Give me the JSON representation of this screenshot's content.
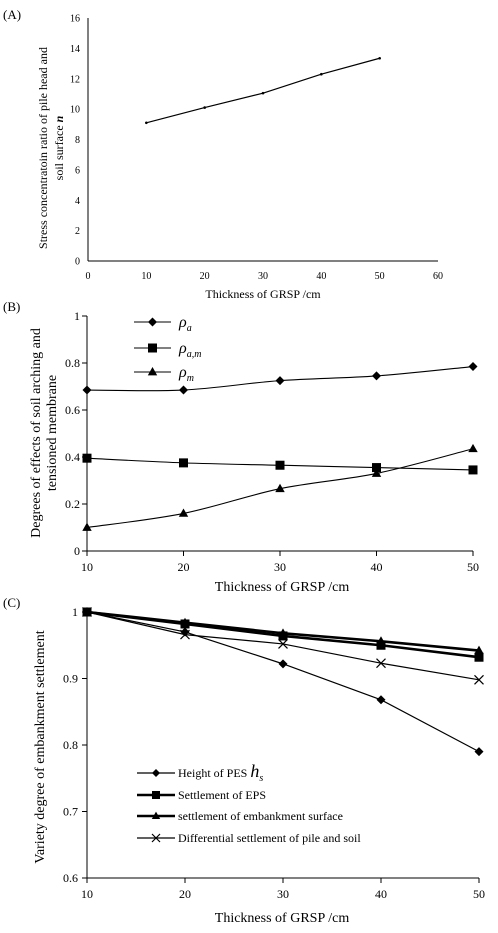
{
  "chart_data": [
    {
      "panel_label": "(A)",
      "type": "line",
      "xlabel": "Thickness of GRSP /cm",
      "ylabel_line1": "Stress concentratoin ratio of pile head and",
      "ylabel_line2_pre": "soil surface  ",
      "ylabel_line2_sym": "n",
      "xlim": [
        0,
        60
      ],
      "ylim": [
        0,
        16
      ],
      "xticks": [
        0,
        10,
        20,
        30,
        40,
        50,
        60
      ],
      "yticks": [
        0,
        2,
        4,
        6,
        8,
        10,
        12,
        14,
        16
      ],
      "series": [
        {
          "marker": "circle",
          "x": [
            10,
            20,
            30,
            40,
            50
          ],
          "y": [
            9.1,
            10.1,
            11.05,
            12.3,
            13.35
          ]
        }
      ]
    },
    {
      "panel_label": "(B)",
      "type": "line",
      "xlabel": "Thickness of GRSP /cm",
      "ylabel_line1": "Degrees of effects of soil arching and",
      "ylabel_line2": "tensioned membrane",
      "xlim": [
        10,
        50
      ],
      "ylim": [
        0,
        1
      ],
      "xticks": [
        10,
        20,
        30,
        40,
        50
      ],
      "yticks": [
        "0",
        "0.2",
        "0.4",
        "0.6",
        "0.8",
        "1"
      ],
      "legend": [
        {
          "sym": "ρ",
          "sub": "a",
          "marker": "diamond"
        },
        {
          "sym": "ρ",
          "sub": "a,m",
          "marker": "square"
        },
        {
          "sym": "ρ",
          "sub": "m",
          "marker": "triangle"
        }
      ],
      "series": [
        {
          "marker": "diamond",
          "x": [
            10,
            20,
            30,
            40,
            50
          ],
          "y": [
            0.685,
            0.685,
            0.725,
            0.745,
            0.785
          ]
        },
        {
          "marker": "square",
          "x": [
            10,
            20,
            30,
            40,
            50
          ],
          "y": [
            0.395,
            0.375,
            0.365,
            0.355,
            0.345
          ]
        },
        {
          "marker": "triangle",
          "x": [
            10,
            20,
            30,
            40,
            50
          ],
          "y": [
            0.1,
            0.16,
            0.265,
            0.33,
            0.435
          ]
        }
      ]
    },
    {
      "panel_label": "(C)",
      "type": "line",
      "xlabel": "Thickness of GRSP /cm",
      "ylabel": "Variety degree of embankment  settlement",
      "xlim": [
        10,
        50
      ],
      "ylim": [
        0.6,
        1
      ],
      "xticks": [
        10,
        20,
        30,
        40,
        50
      ],
      "yticks": [
        "0.6",
        "0.7",
        "0.8",
        "0.9",
        "1"
      ],
      "legend": [
        {
          "label": "Height of PES ",
          "sym": "h",
          "sub": "s",
          "marker": "diamond"
        },
        {
          "label": "Settlement of EPS",
          "marker": "square"
        },
        {
          "label": "settlement of embankment surface",
          "marker": "triangle"
        },
        {
          "label": "Differential settlement of pile and soil",
          "marker": "x"
        }
      ],
      "series": [
        {
          "marker": "diamond",
          "width": 1.2,
          "x": [
            10,
            20,
            30,
            40,
            50
          ],
          "y": [
            1.0,
            0.97,
            0.922,
            0.868,
            0.79
          ]
        },
        {
          "marker": "square",
          "width": 2.6,
          "x": [
            10,
            20,
            30,
            40,
            50
          ],
          "y": [
            1.0,
            0.982,
            0.964,
            0.95,
            0.932
          ]
        },
        {
          "marker": "triangle",
          "width": 2.6,
          "x": [
            10,
            20,
            30,
            40,
            50
          ],
          "y": [
            1.0,
            0.984,
            0.968,
            0.956,
            0.942
          ]
        },
        {
          "marker": "x",
          "width": 1.2,
          "x": [
            10,
            20,
            30,
            40,
            50
          ],
          "y": [
            1.0,
            0.966,
            0.952,
            0.923,
            0.898
          ]
        }
      ]
    }
  ]
}
